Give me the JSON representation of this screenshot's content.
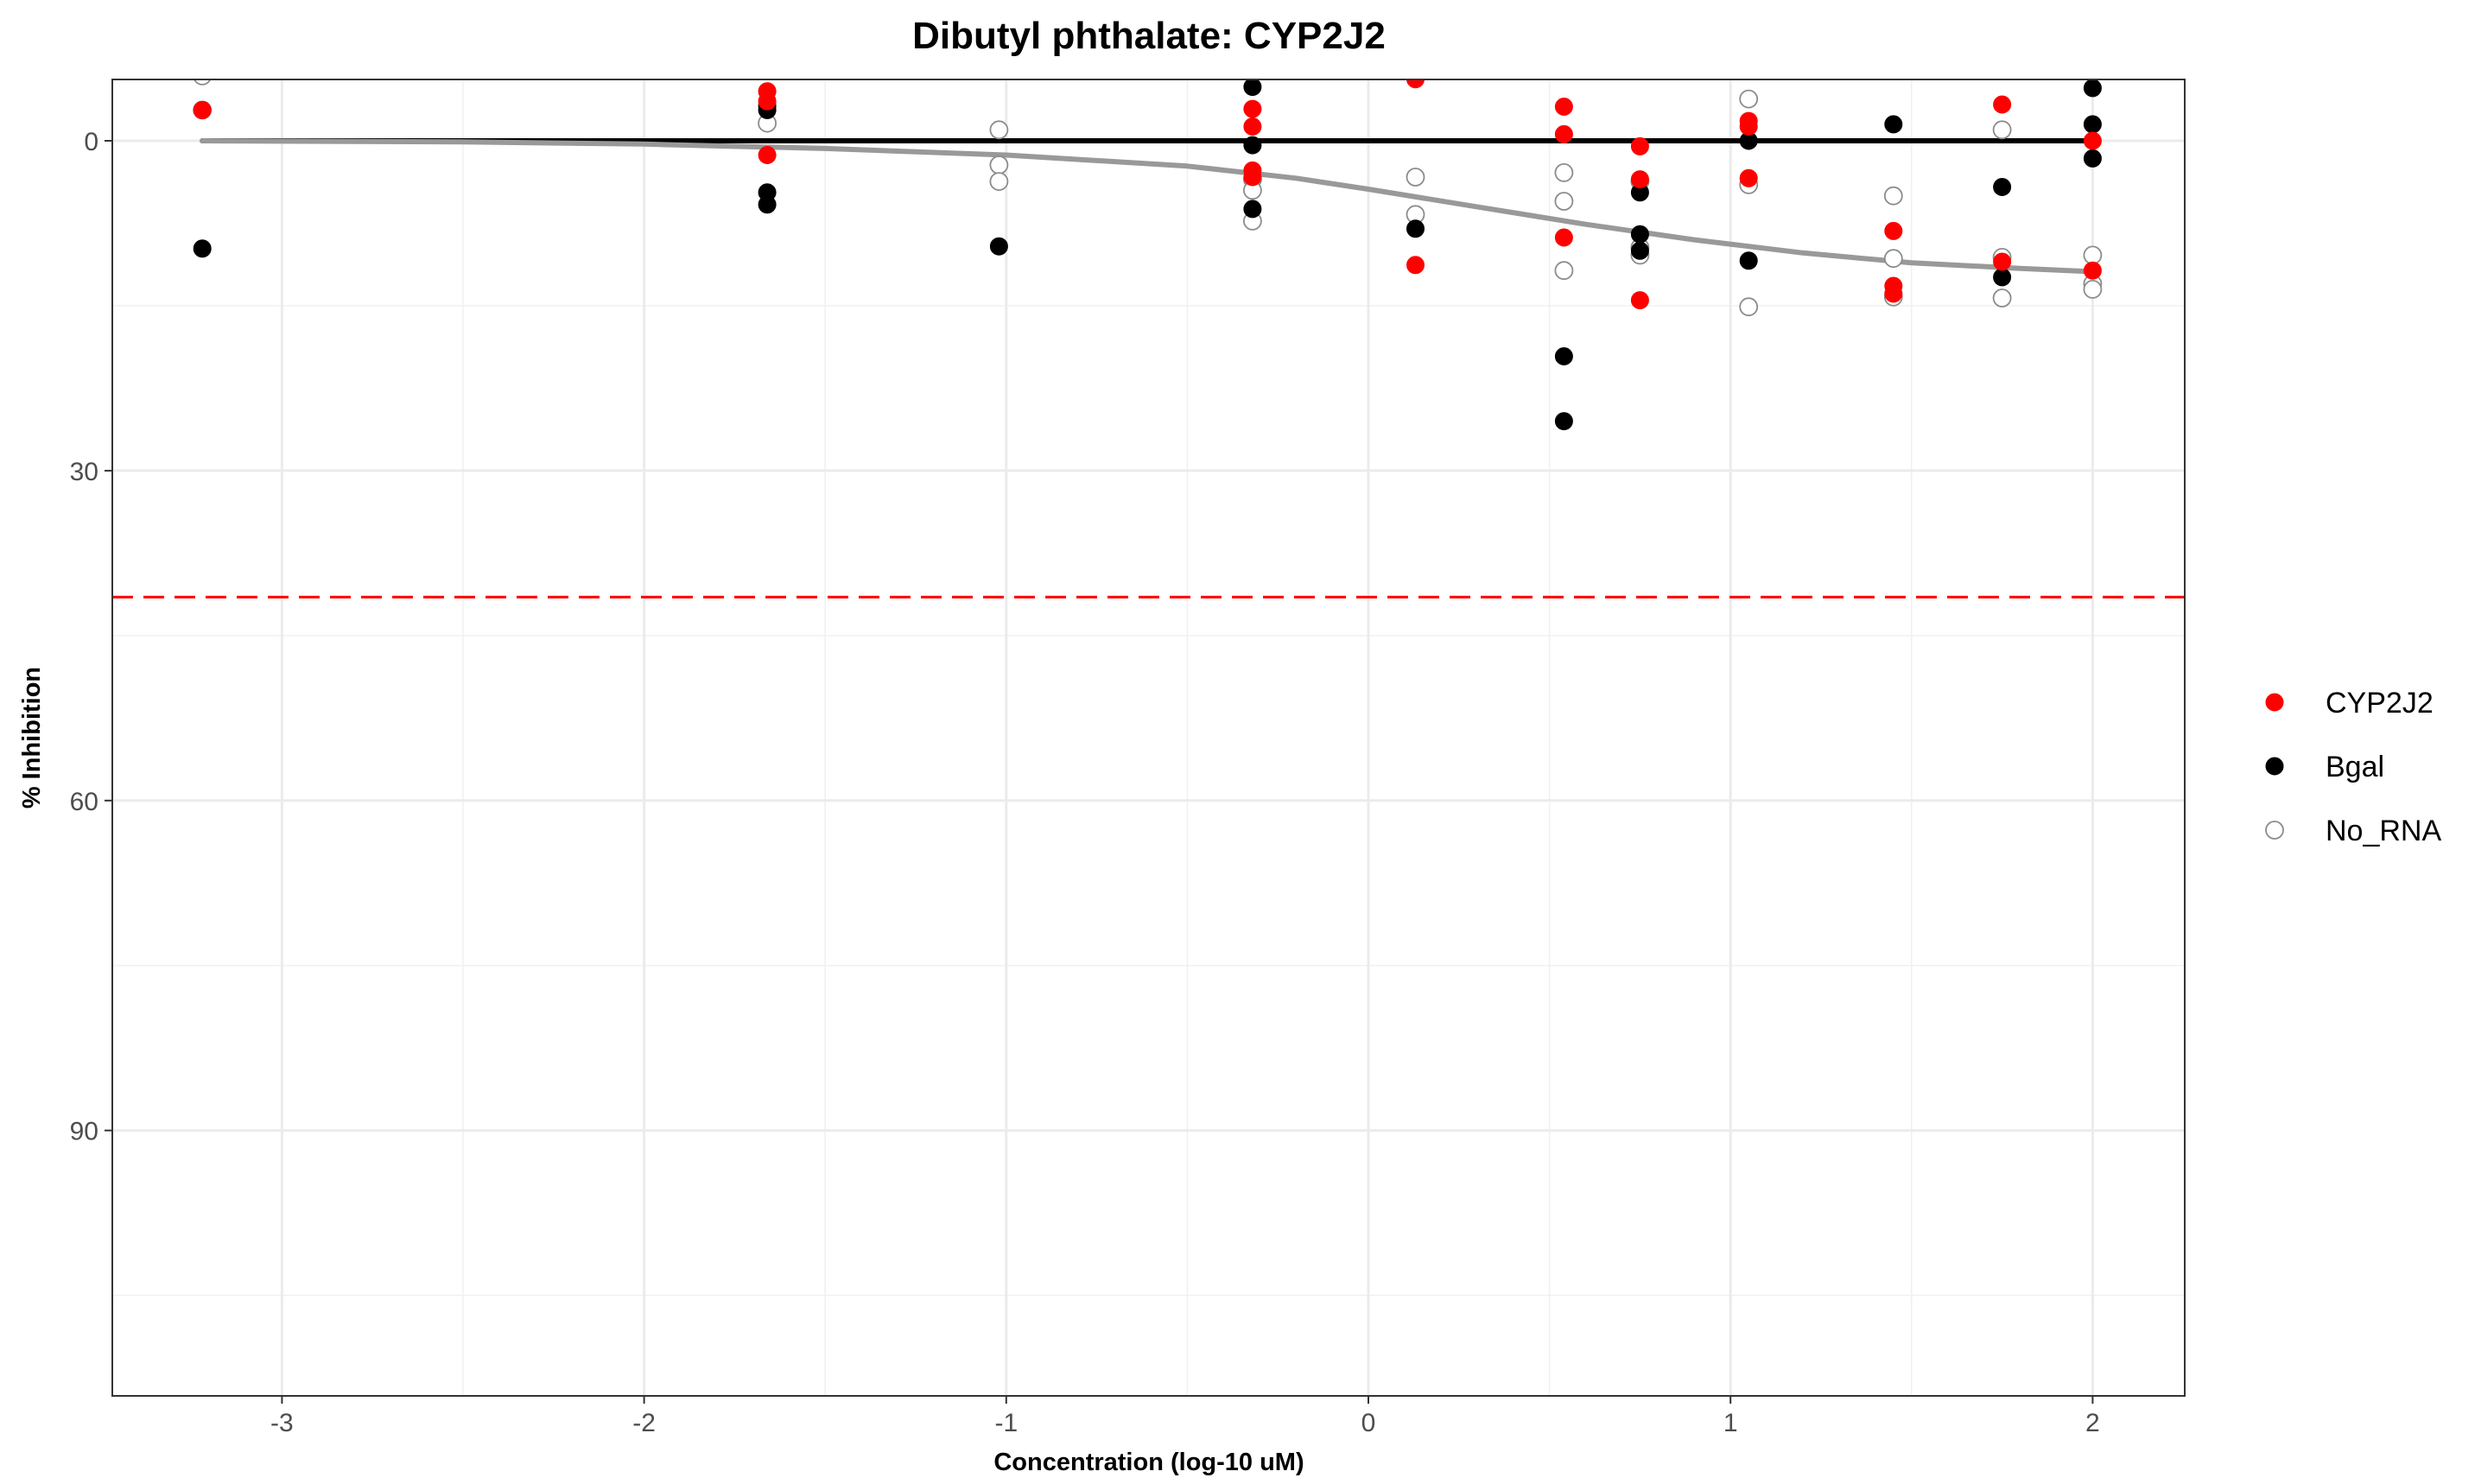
{
  "chart_data": {
    "type": "scatter",
    "title": "Dibutyl phthalate: CYP2J2",
    "xlabel": "Concentration (log-10 uM)",
    "ylabel": "% Inhibition",
    "xlim": [
      -3.5,
      2.5
    ],
    "ylim": [
      -5.5,
      114
    ],
    "y_reversed": true,
    "x_ticks": [
      -3,
      -2,
      -1,
      0,
      1,
      2
    ],
    "y_ticks": [
      0,
      30,
      60,
      90
    ],
    "grid": true,
    "legend_position": "right",
    "series": [
      {
        "name": "CYP2J2",
        "color": "#ff0000",
        "marker": "filled",
        "points": [
          [
            -3.22,
            -2.8
          ],
          [
            -3.22,
            -2.8
          ],
          [
            -1.66,
            -4.5
          ],
          [
            -1.66,
            -3.6
          ],
          [
            -1.66,
            1.3
          ],
          [
            -0.32,
            -2.9
          ],
          [
            -0.32,
            -1.3
          ],
          [
            -0.32,
            2.7
          ],
          [
            -0.32,
            3.3
          ],
          [
            0.13,
            -5.6
          ],
          [
            0.13,
            11.3
          ],
          [
            0.54,
            -3.1
          ],
          [
            0.54,
            -0.6
          ],
          [
            0.54,
            8.8
          ],
          [
            0.75,
            0.5
          ],
          [
            0.75,
            3.5
          ],
          [
            0.75,
            14.5
          ],
          [
            1.05,
            -1.8
          ],
          [
            1.05,
            -1.3
          ],
          [
            1.05,
            3.4
          ],
          [
            1.45,
            8.2
          ],
          [
            1.45,
            13.2
          ],
          [
            1.45,
            13.9
          ],
          [
            1.75,
            -3.3
          ],
          [
            1.75,
            11.0
          ],
          [
            2.0,
            0.0
          ],
          [
            2.0,
            11.8
          ]
        ]
      },
      {
        "name": "Bgal",
        "color": "#000000",
        "marker": "filled",
        "points": [
          [
            -3.22,
            9.8
          ],
          [
            -1.66,
            -3.2
          ],
          [
            -1.66,
            -2.8
          ],
          [
            -1.66,
            4.7
          ],
          [
            -1.66,
            5.8
          ],
          [
            -1.02,
            9.6
          ],
          [
            -0.32,
            -4.9
          ],
          [
            -0.32,
            0.4
          ],
          [
            -0.32,
            6.2
          ],
          [
            0.13,
            8.0
          ],
          [
            0.54,
            19.6
          ],
          [
            0.54,
            25.5
          ],
          [
            0.75,
            4.7
          ],
          [
            0.75,
            8.5
          ],
          [
            0.75,
            10.0
          ],
          [
            1.05,
            0.0
          ],
          [
            1.05,
            10.9
          ],
          [
            1.45,
            -1.5
          ],
          [
            1.75,
            4.2
          ],
          [
            1.75,
            12.4
          ],
          [
            2.0,
            -4.8
          ],
          [
            2.0,
            -1.5
          ],
          [
            2.0,
            1.6
          ]
        ]
      },
      {
        "name": "No_RNA",
        "color": "#8c8c8c",
        "marker": "open",
        "points": [
          [
            -3.22,
            -5.9
          ],
          [
            -3.22,
            -2.8
          ],
          [
            -1.66,
            -1.6
          ],
          [
            -1.02,
            -1.0
          ],
          [
            -1.02,
            2.2
          ],
          [
            -1.02,
            3.7
          ],
          [
            -0.32,
            3.5
          ],
          [
            -0.32,
            4.5
          ],
          [
            -0.32,
            7.3
          ],
          [
            0.13,
            3.3
          ],
          [
            0.13,
            6.7
          ],
          [
            0.54,
            2.9
          ],
          [
            0.54,
            5.5
          ],
          [
            0.54,
            11.8
          ],
          [
            0.75,
            3.7
          ],
          [
            0.75,
            9.7
          ],
          [
            0.75,
            10.4
          ],
          [
            1.05,
            -3.8
          ],
          [
            1.05,
            4.0
          ],
          [
            1.05,
            15.1
          ],
          [
            1.45,
            5.0
          ],
          [
            1.45,
            10.7
          ],
          [
            1.45,
            14.2
          ],
          [
            1.75,
            -1.0
          ],
          [
            1.75,
            10.6
          ],
          [
            1.75,
            14.3
          ],
          [
            2.0,
            10.4
          ],
          [
            2.0,
            13.0
          ],
          [
            2.0,
            13.5
          ]
        ]
      }
    ],
    "fit_lines": [
      {
        "name": "Bgal",
        "color": "#000000",
        "x": [
          -3.22,
          2.0
        ],
        "y": [
          0.0,
          0.0
        ]
      },
      {
        "name": "No_RNA",
        "color": "#999999",
        "x": [
          -3.22,
          -2.5,
          -2.0,
          -1.5,
          -1.0,
          -0.5,
          -0.2,
          0.0,
          0.3,
          0.6,
          0.9,
          1.2,
          1.5,
          1.8,
          2.0
        ],
        "y": [
          0.0,
          0.1,
          0.3,
          0.7,
          1.3,
          2.3,
          3.4,
          4.4,
          6.0,
          7.6,
          9.0,
          10.2,
          11.1,
          11.6,
          11.9
        ]
      }
    ],
    "threshold": {
      "y": 41.5,
      "color": "#ff0000",
      "style": "dashed"
    }
  }
}
